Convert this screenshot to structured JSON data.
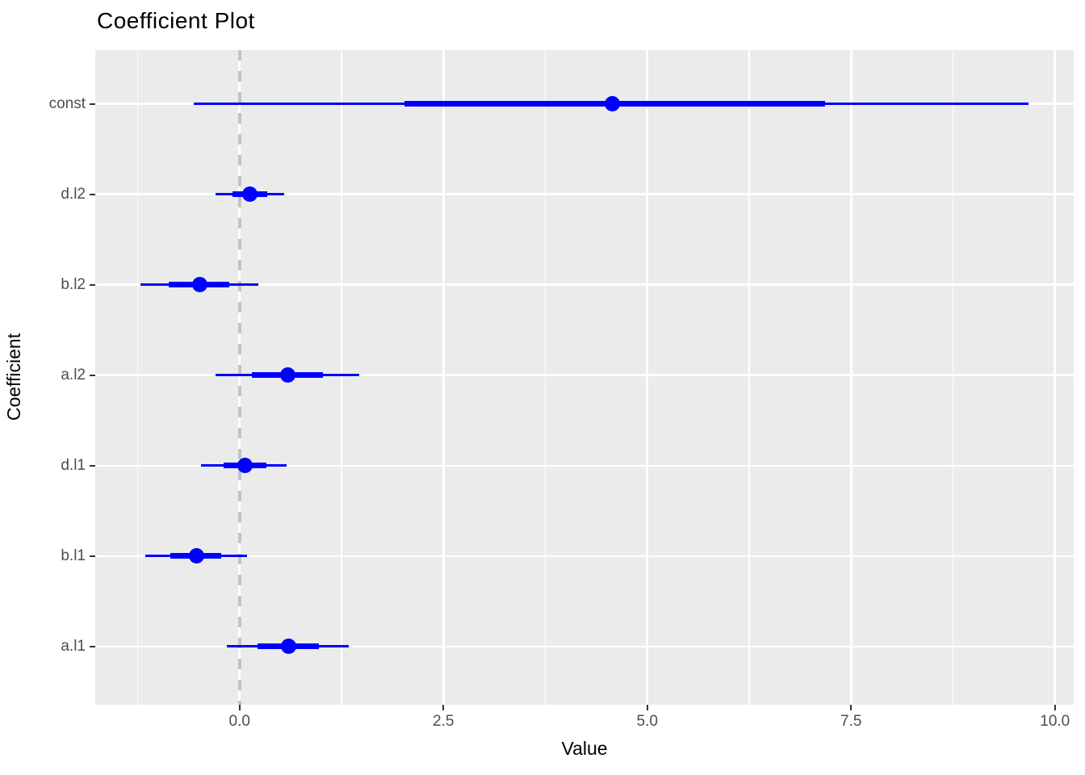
{
  "chart_data": {
    "type": "scatter",
    "subtype": "coefficient-dot-whisker",
    "title": "Coefficient Plot",
    "xlabel": "Value",
    "ylabel": "Coefficient",
    "legend": "none",
    "grid": true,
    "panel_bg": "#EBEBEB",
    "grid_color": "#FFFFFF",
    "point_color": "#0000FF",
    "reference_line": {
      "x": 0,
      "style": "dashed",
      "color": "#C3C3C3"
    },
    "xlim": [
      -1.77,
      10.23
    ],
    "x_ticks": [
      0.0,
      2.5,
      5.0,
      7.5,
      10.0
    ],
    "x_tick_labels": [
      "0.0",
      "2.5",
      "5.0",
      "7.5",
      "10.0"
    ],
    "x_minor_ticks": [
      -1.25,
      1.25,
      3.75,
      6.25,
      8.75
    ],
    "categories": [
      "const",
      "d.l2",
      "b.l2",
      "a.l2",
      "d.l1",
      "b.l1",
      "a.l1"
    ],
    "points": [
      {
        "label": "const",
        "estimate": 4.57,
        "inner_ci": [
          2.02,
          7.18
        ],
        "outer_ci": [
          -0.56,
          9.68
        ]
      },
      {
        "label": "d.l2",
        "estimate": 0.13,
        "inner_ci": [
          -0.09,
          0.34
        ],
        "outer_ci": [
          -0.29,
          0.55
        ]
      },
      {
        "label": "b.l2",
        "estimate": -0.49,
        "inner_ci": [
          -0.87,
          -0.13
        ],
        "outer_ci": [
          -1.22,
          0.23
        ]
      },
      {
        "label": "a.l2",
        "estimate": 0.59,
        "inner_ci": [
          0.15,
          1.02
        ],
        "outer_ci": [
          -0.29,
          1.47
        ]
      },
      {
        "label": "d.l1",
        "estimate": 0.07,
        "inner_ci": [
          -0.2,
          0.33
        ],
        "outer_ci": [
          -0.47,
          0.58
        ]
      },
      {
        "label": "b.l1",
        "estimate": -0.53,
        "inner_ci": [
          -0.85,
          -0.23
        ],
        "outer_ci": [
          -1.16,
          0.09
        ]
      },
      {
        "label": "a.l1",
        "estimate": 0.6,
        "inner_ci": [
          0.22,
          0.97
        ],
        "outer_ci": [
          -0.16,
          1.34
        ]
      }
    ]
  }
}
